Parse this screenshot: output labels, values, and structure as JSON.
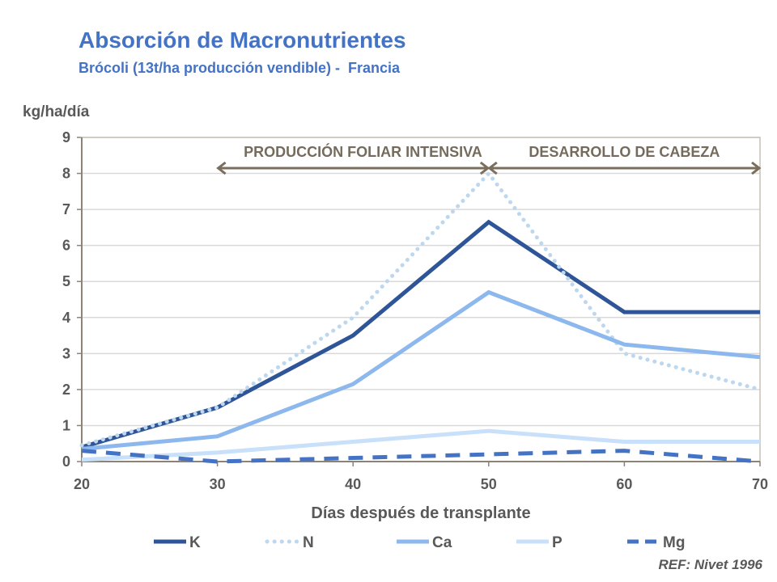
{
  "chart_data": {
    "type": "line",
    "title": "Absorción de Macronutrientes",
    "subtitle": "Brócoli (13t/ha producción vendible) -  Francia",
    "ylabel": "kg/ha/día",
    "xlabel": "Días después de transplante",
    "x": [
      20,
      30,
      40,
      50,
      60,
      70
    ],
    "xlim": [
      20,
      70
    ],
    "ylim": [
      0,
      9
    ],
    "xticks": [
      "20",
      "30",
      "40",
      "50",
      "60",
      "70"
    ],
    "yticks": [
      "0",
      "1",
      "2",
      "3",
      "4",
      "5",
      "6",
      "7",
      "8",
      "9"
    ],
    "grid": true,
    "legend_position": "bottom",
    "series": [
      {
        "name": "K",
        "values": [
          0.4,
          1.5,
          3.5,
          6.65,
          4.15,
          4.15
        ],
        "color": "#2E5597",
        "style": "solid"
      },
      {
        "name": "N",
        "values": [
          0.45,
          1.5,
          4.0,
          8.0,
          3.0,
          2.0
        ],
        "color": "#BDD7EE",
        "style": "dotted"
      },
      {
        "name": "Ca",
        "values": [
          0.35,
          0.7,
          2.15,
          4.7,
          3.25,
          2.9
        ],
        "color": "#8DB8EE",
        "style": "solid"
      },
      {
        "name": "P",
        "values": [
          0.05,
          0.25,
          0.55,
          0.85,
          0.55,
          0.55
        ],
        "color": "#C8E0FA",
        "style": "solid"
      },
      {
        "name": "Mg",
        "values": [
          0.3,
          0.0,
          0.1,
          0.2,
          0.3,
          0.0
        ],
        "color": "#4472C4",
        "style": "dashed"
      }
    ],
    "annotations": [
      {
        "text": "PRODUCCIÓN FOLIAR INTENSIVA",
        "from": 30,
        "to": 50
      },
      {
        "text": "DESARROLLO DE CABEZA",
        "from": 50,
        "to": 70
      }
    ],
    "source": "REF: Nivet  1996"
  }
}
